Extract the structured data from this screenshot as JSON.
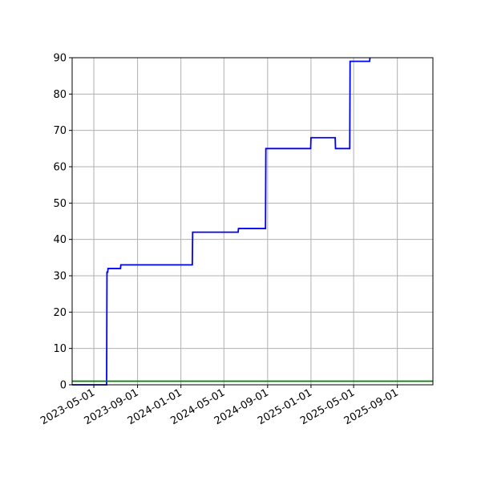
{
  "chart_data": {
    "type": "line",
    "title": "",
    "xlabel": "",
    "ylabel": "",
    "x_axis_type": "date",
    "xlim": [
      "2023-03-01",
      "2025-12-10"
    ],
    "ylim": [
      0,
      90
    ],
    "grid": true,
    "x_ticks": [
      "2023-05-01",
      "2023-09-01",
      "2024-01-01",
      "2024-05-01",
      "2024-09-01",
      "2025-01-01",
      "2025-05-01",
      "2025-09-01"
    ],
    "y_ticks": [
      0,
      10,
      20,
      30,
      40,
      50,
      60,
      70,
      80,
      90
    ],
    "series": [
      {
        "color": "#0000ff",
        "step": true,
        "points": [
          {
            "x": "2023-03-01",
            "y": 0
          },
          {
            "x": "2023-06-06",
            "y": 0
          },
          {
            "x": "2023-06-07",
            "y": 31
          },
          {
            "x": "2023-06-09",
            "y": 31
          },
          {
            "x": "2023-06-10",
            "y": 32
          },
          {
            "x": "2023-07-15",
            "y": 32
          },
          {
            "x": "2023-07-16",
            "y": 33
          },
          {
            "x": "2024-02-02",
            "y": 33
          },
          {
            "x": "2024-02-03",
            "y": 42
          },
          {
            "x": "2024-06-10",
            "y": 42
          },
          {
            "x": "2024-06-11",
            "y": 43
          },
          {
            "x": "2024-08-26",
            "y": 43
          },
          {
            "x": "2024-08-27",
            "y": 65
          },
          {
            "x": "2024-12-31",
            "y": 65
          },
          {
            "x": "2025-01-01",
            "y": 68
          },
          {
            "x": "2025-03-10",
            "y": 68
          },
          {
            "x": "2025-03-11",
            "y": 65
          },
          {
            "x": "2025-04-20",
            "y": 65
          },
          {
            "x": "2025-04-21",
            "y": 89
          },
          {
            "x": "2025-06-15",
            "y": 89
          },
          {
            "x": "2025-06-16",
            "y": 90
          }
        ]
      },
      {
        "color": "#008000",
        "type": "hline",
        "y": 1
      }
    ]
  }
}
